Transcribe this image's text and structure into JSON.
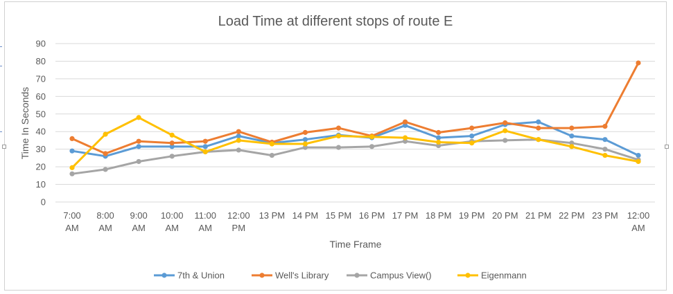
{
  "chart_data": {
    "type": "line",
    "title": "Load Time at different stops of route E",
    "xlabel": "Time Frame",
    "ylabel": "Time In Seconds",
    "ylim": [
      0,
      90
    ],
    "yticks": [
      0,
      10,
      20,
      30,
      40,
      50,
      60,
      70,
      80,
      90
    ],
    "grid": true,
    "legend_position": "bottom",
    "categories": [
      "7:00 AM",
      "8:00 AM",
      "9:00 AM",
      "10:00 AM",
      "11:00 AM",
      "12:00 PM",
      "13 PM",
      "14 PM",
      "15 PM",
      "16 PM",
      "17 PM",
      "18 PM",
      "19 PM",
      "20 PM",
      "21 PM",
      "22 PM",
      "23 PM",
      "12:00 AM"
    ],
    "category_lines": [
      [
        "7:00",
        "AM"
      ],
      [
        "8:00",
        "AM"
      ],
      [
        "9:00",
        "AM"
      ],
      [
        "10:00",
        "AM"
      ],
      [
        "11:00",
        "AM"
      ],
      [
        "12:00",
        "PM"
      ],
      [
        "13 PM"
      ],
      [
        "14 PM"
      ],
      [
        "15 PM"
      ],
      [
        "16 PM"
      ],
      [
        "17 PM"
      ],
      [
        "18 PM"
      ],
      [
        "19 PM"
      ],
      [
        "20 PM"
      ],
      [
        "21 PM"
      ],
      [
        "22 PM"
      ],
      [
        "23 PM"
      ],
      [
        "12:00",
        "AM"
      ]
    ],
    "series": [
      {
        "name": "7th & Union",
        "color": "#5B9BD5",
        "values": [
          29,
          26,
          31.5,
          31.5,
          31.5,
          37.5,
          33.5,
          35.5,
          38,
          36.5,
          43.5,
          36.5,
          37.5,
          44,
          45.5,
          37.5,
          35.5,
          26.5
        ]
      },
      {
        "name": "Well's Library",
        "color": "#ED7D31",
        "values": [
          36,
          27.5,
          34.5,
          33.5,
          34.5,
          40,
          34,
          39.5,
          42,
          37.5,
          45.5,
          39.5,
          42,
          45,
          42,
          42,
          43,
          79
        ]
      },
      {
        "name": "Campus View()",
        "color": "#A5A5A5",
        "values": [
          16,
          18.5,
          23,
          26,
          28.5,
          29.5,
          26.5,
          31,
          31,
          31.5,
          34.5,
          32,
          34.5,
          35,
          35.5,
          33.5,
          30,
          24
        ]
      },
      {
        "name": "Eigenmann",
        "color": "#FFC000",
        "values": [
          19.5,
          38.5,
          48,
          38,
          28.5,
          35,
          33,
          33,
          37.5,
          37,
          36.5,
          34,
          33.5,
          40.5,
          35.5,
          31.5,
          26.5,
          23
        ]
      }
    ]
  }
}
